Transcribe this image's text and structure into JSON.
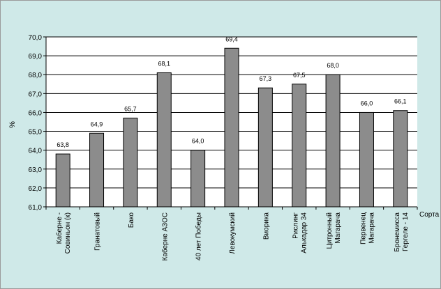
{
  "chart_data": {
    "type": "bar",
    "title": "",
    "xlabel": "Сорта",
    "ylabel": "%",
    "ylim": [
      61.0,
      70.0
    ],
    "ytick_step": 1.0,
    "ytick_labels": [
      "61,0",
      "62,0",
      "63,0",
      "64,0",
      "65,0",
      "66,0",
      "67,0",
      "68,0",
      "69,0",
      "70,0"
    ],
    "grid": true,
    "legend": "none",
    "categories": [
      [
        "Каберне -",
        "Совиньон (к)"
      ],
      [
        "Гранатовый"
      ],
      [
        "Бако"
      ],
      [
        "Каберне АЗОС"
      ],
      [
        "40 лет Победы"
      ],
      [
        "Левокумский"
      ],
      [
        "Виорика"
      ],
      [
        "Рислинг",
        "Алькадар 34"
      ],
      [
        "Цитронный",
        "Магарача"
      ],
      [
        "Первенец",
        "Магарача"
      ],
      [
        "Бронемисса",
        "Гергеле - 14"
      ]
    ],
    "values": [
      63.8,
      64.9,
      65.7,
      68.1,
      64.0,
      69.4,
      67.3,
      67.5,
      68.0,
      66.0,
      66.1
    ],
    "value_labels": [
      "63,8",
      "64,9",
      "65,7",
      "68,1",
      "64,0",
      "69,4",
      "67,3",
      "67,5",
      "68,0",
      "66,0",
      "66,1"
    ],
    "colors": {
      "background": "#cfe9e8",
      "plot_area": "#ffffff",
      "bar_fill": "#8c8c8c",
      "bar_stroke": "#000000",
      "grid": "#000000"
    }
  }
}
